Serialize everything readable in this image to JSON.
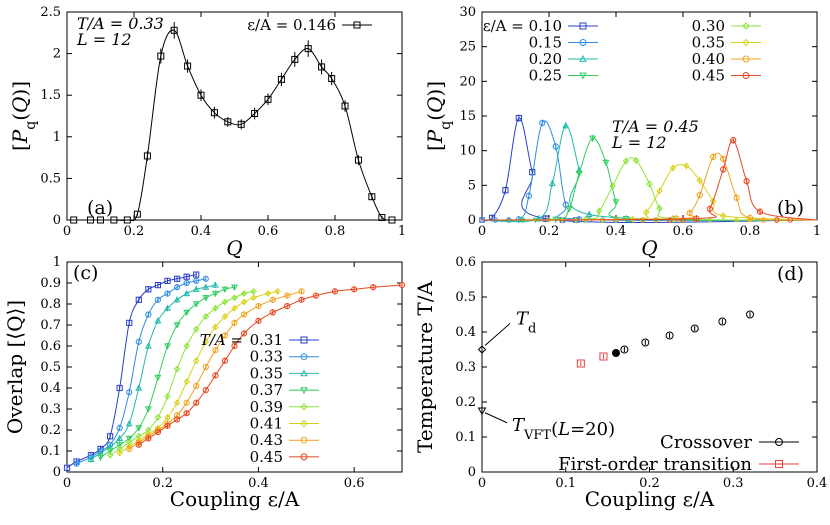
{
  "chart_data": [
    {
      "panel": "(a)",
      "type": "line",
      "xlabel": "Q",
      "ylabel": "[P_q(Q)]",
      "xlim": [
        0,
        1
      ],
      "ylim": [
        0,
        2.5
      ],
      "xticks": [
        "0",
        "0.2",
        "0.4",
        "0.6",
        "0.8",
        "1"
      ],
      "yticks": [
        "0",
        "0.5",
        "1",
        "1.5",
        "2",
        "2.5"
      ],
      "annotations": [
        "T/A = 0.33",
        "L = 12"
      ],
      "legend": [
        {
          "label": "ε/A = 0.146"
        }
      ],
      "series": [
        {
          "name": "ε/A = 0.146",
          "color": "#000000",
          "marker": "square",
          "x": [
            0.02,
            0.07,
            0.1,
            0.14,
            0.18,
            0.21,
            0.24,
            0.28,
            0.32,
            0.36,
            0.4,
            0.44,
            0.48,
            0.52,
            0.56,
            0.6,
            0.64,
            0.68,
            0.72,
            0.76,
            0.79,
            0.83,
            0.87,
            0.91,
            0.94,
            0.97
          ],
          "y": [
            0.0,
            0.0,
            0.0,
            0.0,
            0.0,
            0.07,
            0.77,
            1.97,
            2.28,
            1.85,
            1.5,
            1.29,
            1.18,
            1.15,
            1.28,
            1.45,
            1.69,
            1.93,
            2.06,
            1.84,
            1.7,
            1.37,
            0.72,
            0.28,
            0.03,
            0.0
          ],
          "err": [
            0.0,
            0.0,
            0.0,
            0.0,
            0.0,
            0.02,
            0.06,
            0.09,
            0.1,
            0.08,
            0.07,
            0.07,
            0.06,
            0.06,
            0.07,
            0.07,
            0.08,
            0.09,
            0.1,
            0.09,
            0.08,
            0.07,
            0.06,
            0.04,
            0.02,
            0.0
          ]
        }
      ]
    },
    {
      "panel": "(b)",
      "type": "line",
      "xlabel": "Q",
      "ylabel": "[P_q(Q)]",
      "xlim": [
        0,
        1
      ],
      "ylim": [
        0,
        30
      ],
      "xticks": [
        "0",
        "0.2",
        "0.4",
        "0.6",
        "0.8",
        "1"
      ],
      "yticks": [
        "0",
        "5",
        "10",
        "15",
        "20",
        "25",
        "30"
      ],
      "annotations": [
        "T/A = 0.45",
        "L = 12"
      ],
      "series": [
        {
          "name": "ε/A = 0.10",
          "color": "#2a3fc8",
          "marker": "square",
          "x": [
            0.03,
            0.07,
            0.11,
            0.15,
            0.19
          ],
          "y": [
            0.3,
            4.3,
            14.7,
            6.9,
            0.2
          ]
        },
        {
          "name": "0.15",
          "color": "#2f8de3",
          "marker": "circle",
          "x": [
            0.11,
            0.14,
            0.18,
            0.22,
            0.25,
            0.29
          ],
          "y": [
            0.1,
            3.5,
            14.0,
            10.6,
            2.2,
            0.1
          ]
        },
        {
          "name": "0.20",
          "color": "#23b8ab",
          "marker": "triangle-up",
          "x": [
            0.17,
            0.21,
            0.25,
            0.29,
            0.32
          ],
          "y": [
            0.2,
            5.3,
            13.6,
            7.2,
            0.8
          ]
        },
        {
          "name": "0.25",
          "color": "#2ece5e",
          "marker": "triangle-down",
          "x": [
            0.22,
            0.26,
            0.29,
            0.33,
            0.37,
            0.4,
            0.43
          ],
          "y": [
            0.1,
            1.6,
            6.7,
            11.8,
            8.3,
            2.6,
            0.2
          ]
        },
        {
          "name": "0.30",
          "color": "#8ee33a",
          "marker": "diamond",
          "x": [
            0.31,
            0.35,
            0.39,
            0.43,
            0.46,
            0.5,
            0.53,
            0.57
          ],
          "y": [
            0.1,
            1.3,
            4.9,
            8.5,
            8.6,
            5.2,
            1.7,
            0.2
          ]
        },
        {
          "name": "0.35",
          "color": "#d9d21a",
          "marker": "diamond",
          "x": [
            0.45,
            0.49,
            0.53,
            0.57,
            0.61,
            0.65,
            0.69,
            0.72
          ],
          "y": [
            0.1,
            1.1,
            4.2,
            7.5,
            7.8,
            5.7,
            2.7,
            0.6
          ]
        },
        {
          "name": "0.40",
          "color": "#f0a21e",
          "marker": "circle",
          "x": [
            0.58,
            0.62,
            0.65,
            0.69,
            0.72,
            0.76,
            0.8
          ],
          "y": [
            0.2,
            1.0,
            3.6,
            9.1,
            8.8,
            3.2,
            0.3
          ]
        },
        {
          "name": "0.45",
          "color": "#e8461f",
          "marker": "circle",
          "x": [
            0.64,
            0.68,
            0.72,
            0.75,
            0.79,
            0.83
          ],
          "y": [
            0.2,
            1.6,
            7.3,
            11.5,
            5.6,
            1.2
          ]
        }
      ]
    },
    {
      "panel": "(c)",
      "type": "line",
      "xlabel": "Coupling ε/A",
      "ylabel": "Overlap [⟨Q⟩]",
      "xlim": [
        0,
        0.7
      ],
      "ylim": [
        0,
        1
      ],
      "xticks": [
        "0",
        "0.2",
        "0.4",
        "0.6"
      ],
      "yticks": [
        "0",
        "0.1",
        "0.2",
        "0.3",
        "0.4",
        "0.5",
        "0.6",
        "0.7",
        "0.8",
        "0.9",
        "1"
      ],
      "legend_title": "T/A =",
      "series": [
        {
          "name": "0.31",
          "color": "#2a3fc8",
          "marker": "square",
          "x": [
            0.0,
            0.02,
            0.05,
            0.07,
            0.09,
            0.11,
            0.13,
            0.15,
            0.17,
            0.19,
            0.21,
            0.23,
            0.25,
            0.27
          ],
          "y": [
            0.02,
            0.05,
            0.08,
            0.11,
            0.17,
            0.4,
            0.71,
            0.82,
            0.87,
            0.89,
            0.91,
            0.92,
            0.93,
            0.94
          ]
        },
        {
          "name": "0.33",
          "color": "#2f8de3",
          "marker": "circle",
          "x": [
            0.02,
            0.05,
            0.07,
            0.09,
            0.11,
            0.13,
            0.15,
            0.17,
            0.19,
            0.21,
            0.23,
            0.25,
            0.27,
            0.29
          ],
          "y": [
            0.04,
            0.07,
            0.1,
            0.13,
            0.21,
            0.38,
            0.62,
            0.75,
            0.82,
            0.85,
            0.88,
            0.9,
            0.91,
            0.92
          ]
        },
        {
          "name": "0.35",
          "color": "#23b8ab",
          "marker": "triangle-up",
          "x": [
            0.05,
            0.07,
            0.09,
            0.11,
            0.13,
            0.15,
            0.17,
            0.19,
            0.21,
            0.23,
            0.25,
            0.27,
            0.29,
            0.31
          ],
          "y": [
            0.06,
            0.09,
            0.12,
            0.16,
            0.23,
            0.4,
            0.6,
            0.72,
            0.78,
            0.82,
            0.85,
            0.87,
            0.88,
            0.89
          ]
        },
        {
          "name": "0.37",
          "color": "#2ece5e",
          "marker": "triangle-down",
          "x": [
            0.07,
            0.09,
            0.11,
            0.13,
            0.15,
            0.17,
            0.19,
            0.21,
            0.23,
            0.25,
            0.27,
            0.29,
            0.31,
            0.33,
            0.35
          ],
          "y": [
            0.07,
            0.1,
            0.13,
            0.16,
            0.21,
            0.3,
            0.45,
            0.6,
            0.7,
            0.76,
            0.8,
            0.83,
            0.85,
            0.87,
            0.88
          ]
        },
        {
          "name": "0.39",
          "color": "#8ee33a",
          "marker": "diamond",
          "x": [
            0.09,
            0.11,
            0.13,
            0.15,
            0.17,
            0.19,
            0.21,
            0.23,
            0.25,
            0.27,
            0.29,
            0.31,
            0.33,
            0.35,
            0.37,
            0.39
          ],
          "y": [
            0.08,
            0.11,
            0.14,
            0.17,
            0.2,
            0.26,
            0.36,
            0.49,
            0.6,
            0.68,
            0.74,
            0.78,
            0.81,
            0.83,
            0.85,
            0.86
          ]
        },
        {
          "name": "0.41",
          "color": "#d9d21a",
          "marker": "diamond",
          "x": [
            0.11,
            0.13,
            0.15,
            0.17,
            0.19,
            0.21,
            0.23,
            0.25,
            0.27,
            0.29,
            0.31,
            0.33,
            0.35,
            0.37,
            0.39,
            0.42,
            0.44
          ],
          "y": [
            0.09,
            0.12,
            0.15,
            0.18,
            0.21,
            0.26,
            0.33,
            0.43,
            0.53,
            0.62,
            0.69,
            0.74,
            0.78,
            0.81,
            0.83,
            0.85,
            0.86
          ]
        },
        {
          "name": "0.43",
          "color": "#f0a21e",
          "marker": "circle",
          "x": [
            0.13,
            0.15,
            0.17,
            0.19,
            0.21,
            0.23,
            0.25,
            0.27,
            0.29,
            0.31,
            0.33,
            0.35,
            0.37,
            0.4,
            0.43,
            0.46,
            0.49
          ],
          "y": [
            0.11,
            0.14,
            0.17,
            0.2,
            0.23,
            0.27,
            0.33,
            0.41,
            0.5,
            0.58,
            0.65,
            0.71,
            0.75,
            0.79,
            0.82,
            0.84,
            0.86
          ]
        },
        {
          "name": "0.45",
          "color": "#e8461f",
          "marker": "circle",
          "x": [
            0.15,
            0.17,
            0.19,
            0.21,
            0.23,
            0.25,
            0.27,
            0.29,
            0.31,
            0.33,
            0.35,
            0.37,
            0.4,
            0.43,
            0.46,
            0.49,
            0.52,
            0.56,
            0.6,
            0.64,
            0.7
          ],
          "y": [
            0.13,
            0.16,
            0.19,
            0.22,
            0.25,
            0.28,
            0.33,
            0.39,
            0.46,
            0.53,
            0.6,
            0.66,
            0.72,
            0.76,
            0.79,
            0.82,
            0.84,
            0.86,
            0.87,
            0.88,
            0.89
          ]
        }
      ]
    },
    {
      "panel": "(d)",
      "type": "scatter",
      "xlabel": "Coupling ε/A",
      "ylabel": "Temperature T/A",
      "xlim": [
        0,
        0.4
      ],
      "ylim": [
        0,
        0.6
      ],
      "xticks": [
        "0",
        "0.1",
        "0.2",
        "0.3",
        "0.4"
      ],
      "yticks": [
        "0",
        "0.1",
        "0.2",
        "0.3",
        "0.4",
        "0.5",
        "0.6"
      ],
      "annotations": [
        {
          "text": "T_d",
          "x": 0.0,
          "y": 0.35
        },
        {
          "text": "T_VFT(L=20)",
          "x": 0.0,
          "y": 0.175
        }
      ],
      "series": [
        {
          "name": "Crossover",
          "color": "#000000",
          "marker": "circle",
          "x": [
            0.17,
            0.195,
            0.224,
            0.254,
            0.287,
            0.32
          ],
          "y": [
            0.35,
            0.37,
            0.39,
            0.41,
            0.43,
            0.45
          ]
        },
        {
          "name": "First-order transition",
          "color": "#e04040",
          "marker": "square",
          "x": [
            0.118,
            0.145
          ],
          "y": [
            0.31,
            0.33
          ]
        },
        {
          "name": "critical point",
          "color": "#000000",
          "marker": "filled-circle",
          "x": [
            0.16
          ],
          "y": [
            0.34
          ]
        },
        {
          "name": "T_d",
          "color": "#000000",
          "marker": "diamond",
          "x": [
            0.0
          ],
          "y": [
            0.35
          ]
        },
        {
          "name": "T_VFT(L=20)",
          "color": "#000000",
          "marker": "triangle-down",
          "x": [
            0.0
          ],
          "y": [
            0.175
          ]
        }
      ]
    }
  ]
}
